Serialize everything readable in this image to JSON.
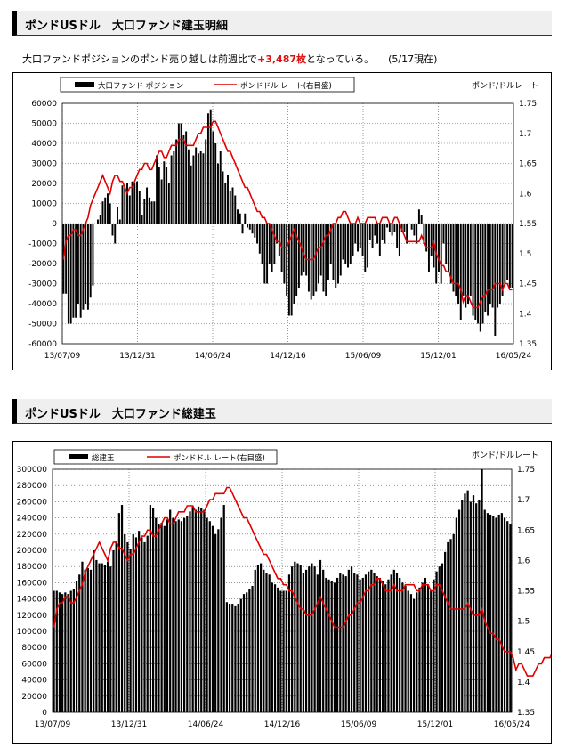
{
  "section1": {
    "title": "ポンドUSドル　大口ファンド建玉明細",
    "description": {
      "prefix": "大口ファンドポジションのポンド売り越しは前週比で",
      "highlight": "+3,487枚",
      "suffix": "となっている。",
      "date_note": "(5/17現在)"
    }
  },
  "section2": {
    "title": "ポンドUSドル　大口ファンド総建玉"
  },
  "colors": {
    "bar": "#000000",
    "line": "#e00000",
    "grid": "#555555"
  },
  "chart_data": [
    {
      "type": "bar",
      "y2_type": "line",
      "title": "",
      "legend": {
        "placement": "top-left",
        "bar_label": "大口ファンド ポジション",
        "line_label": "ポンドドル レート(右目盛)"
      },
      "y2label": "ポンド/ドルレート",
      "ylim": [
        -60000,
        60000
      ],
      "yticks": [
        -60000,
        -50000,
        -40000,
        -30000,
        -20000,
        -10000,
        0,
        10000,
        20000,
        30000,
        40000,
        50000,
        60000
      ],
      "y2lim": [
        1.35,
        1.75
      ],
      "y2ticks": [
        1.35,
        1.4,
        1.45,
        1.5,
        1.55,
        1.6,
        1.65,
        1.7,
        1.75
      ],
      "xticks": [
        "13/07/09",
        "13/12/31",
        "14/06/24",
        "14/12/16",
        "15/06/09",
        "15/12/01",
        "16/05/24"
      ],
      "grid": true,
      "series": [
        {
          "name": "大口ファンド ポジション",
          "type": "bar",
          "values": [
            -35000,
            -35000,
            -50000,
            -50000,
            -47000,
            -47000,
            -40000,
            -47000,
            -43000,
            -40000,
            -43000,
            -37000,
            -31000,
            0,
            2000,
            4000,
            11000,
            13000,
            15000,
            10000,
            -6000,
            -10000,
            8000,
            2000,
            19000,
            18000,
            20000,
            14000,
            21000,
            20000,
            21000,
            16000,
            4000,
            12000,
            18000,
            13000,
            11000,
            11000,
            34000,
            28000,
            22000,
            31000,
            28000,
            20000,
            34000,
            36000,
            42000,
            50000,
            50000,
            44000,
            46000,
            37000,
            29000,
            34000,
            38000,
            35000,
            36000,
            35000,
            42000,
            55000,
            57000,
            46000,
            40000,
            30000,
            36000,
            26000,
            20000,
            24000,
            16000,
            18000,
            14000,
            7000,
            5000,
            -5000,
            5000,
            -2000,
            -3000,
            -5000,
            -7000,
            -10000,
            -15000,
            -20000,
            -30000,
            -30000,
            -20000,
            -24000,
            -20000,
            -10000,
            -16000,
            -24000,
            -30000,
            -36000,
            -46000,
            -46000,
            -40000,
            -36000,
            -32000,
            -26000,
            -24000,
            -26000,
            -34000,
            -38000,
            -36000,
            -34000,
            -30000,
            -26000,
            -34000,
            -36000,
            -28000,
            -20000,
            -28000,
            -32000,
            -30000,
            -26000,
            -18000,
            -20000,
            -22000,
            -20000,
            -16000,
            -10000,
            -14000,
            -12000,
            -16000,
            -24000,
            -22000,
            -8000,
            -12000,
            -6000,
            -10000,
            -16000,
            -8000,
            -10000,
            -2000,
            -4000,
            -6000,
            -4000,
            -12000,
            -16000,
            -4000,
            -4000,
            -10000,
            0,
            -3000,
            -6000,
            -10000,
            7000,
            4000,
            -10000,
            -14000,
            -24000,
            -16000,
            -22000,
            -30000,
            -24000,
            -30000,
            -10000,
            -20000,
            -24000,
            -30000,
            -34000,
            -36000,
            -40000,
            -48000,
            -36000,
            -42000,
            -40000,
            -36000,
            -46000,
            -48000,
            -50000,
            -54000,
            -50000,
            -44000,
            -46000,
            -40000,
            -42000,
            -56000,
            -42000,
            -40000,
            -36000,
            -30000,
            -28000,
            -32000,
            -32000
          ]
        },
        {
          "name": "ポンドドル レート(右目盛)",
          "type": "line",
          "values": [
            1.49,
            1.52,
            1.53,
            1.53,
            1.54,
            1.54,
            1.53,
            1.53,
            1.54,
            1.55,
            1.56,
            1.58,
            1.59,
            1.6,
            1.61,
            1.62,
            1.63,
            1.62,
            1.61,
            1.6,
            1.62,
            1.63,
            1.63,
            1.62,
            1.62,
            1.61,
            1.6,
            1.61,
            1.61,
            1.62,
            1.63,
            1.64,
            1.64,
            1.65,
            1.65,
            1.64,
            1.64,
            1.65,
            1.66,
            1.67,
            1.67,
            1.66,
            1.66,
            1.67,
            1.68,
            1.68,
            1.68,
            1.69,
            1.69,
            1.69,
            1.68,
            1.68,
            1.68,
            1.68,
            1.69,
            1.7,
            1.7,
            1.71,
            1.71,
            1.71,
            1.71,
            1.72,
            1.72,
            1.71,
            1.7,
            1.69,
            1.68,
            1.67,
            1.67,
            1.66,
            1.65,
            1.64,
            1.63,
            1.62,
            1.61,
            1.61,
            1.6,
            1.59,
            1.58,
            1.57,
            1.57,
            1.56,
            1.56,
            1.55,
            1.55,
            1.54,
            1.53,
            1.52,
            1.52,
            1.51,
            1.51,
            1.51,
            1.52,
            1.53,
            1.54,
            1.53,
            1.52,
            1.51,
            1.5,
            1.49,
            1.49,
            1.49,
            1.49,
            1.5,
            1.51,
            1.51,
            1.52,
            1.53,
            1.53,
            1.54,
            1.55,
            1.55,
            1.56,
            1.56,
            1.57,
            1.57,
            1.56,
            1.55,
            1.55,
            1.55,
            1.56,
            1.55,
            1.55,
            1.55,
            1.56,
            1.56,
            1.56,
            1.56,
            1.55,
            1.55,
            1.56,
            1.56,
            1.56,
            1.55,
            1.55,
            1.56,
            1.56,
            1.55,
            1.54,
            1.53,
            1.52,
            1.52,
            1.52,
            1.52,
            1.52,
            1.52,
            1.53,
            1.52,
            1.51,
            1.51,
            1.51,
            1.52,
            1.5,
            1.49,
            1.48,
            1.48,
            1.47,
            1.47,
            1.46,
            1.45,
            1.45,
            1.45,
            1.44,
            1.42,
            1.43,
            1.43,
            1.42,
            1.41,
            1.41,
            1.41,
            1.42,
            1.43,
            1.43,
            1.44,
            1.44,
            1.44,
            1.45,
            1.45,
            1.45,
            1.44,
            1.45,
            1.45,
            1.44,
            1.44
          ]
        }
      ]
    },
    {
      "type": "bar",
      "y2_type": "line",
      "title": "",
      "legend": {
        "placement": "top-left",
        "bar_label": "総建玉",
        "line_label": "ポンドドル レート(右目盛)"
      },
      "y2label": "ポンド/ドルレート",
      "ylim": [
        0,
        300000
      ],
      "yticks": [
        0,
        20000,
        40000,
        60000,
        80000,
        100000,
        120000,
        140000,
        160000,
        180000,
        200000,
        220000,
        240000,
        260000,
        280000,
        300000
      ],
      "y2lim": [
        1.35,
        1.75
      ],
      "y2ticks": [
        1.35,
        1.4,
        1.45,
        1.5,
        1.55,
        1.6,
        1.65,
        1.7,
        1.75
      ],
      "xticks": [
        "13/07/09",
        "13/12/31",
        "14/06/24",
        "14/12/16",
        "15/06/09",
        "15/12/01",
        "16/05/24"
      ],
      "grid": true,
      "series": [
        {
          "name": "総建玉",
          "type": "bar",
          "values": [
            150000,
            150000,
            148000,
            146000,
            148000,
            146000,
            150000,
            152000,
            162000,
            170000,
            186000,
            176000,
            178000,
            176000,
            200000,
            188000,
            184000,
            184000,
            182000,
            186000,
            180000,
            200000,
            212000,
            246000,
            256000,
            220000,
            210000,
            202000,
            220000,
            216000,
            224000,
            216000,
            210000,
            218000,
            256000,
            252000,
            240000,
            232000,
            234000,
            230000,
            238000,
            250000,
            240000,
            236000,
            238000,
            236000,
            240000,
            242000,
            248000,
            254000,
            250000,
            254000,
            252000,
            250000,
            240000,
            236000,
            230000,
            220000,
            226000,
            240000,
            256000,
            136000,
            134000,
            134000,
            132000,
            134000,
            140000,
            146000,
            148000,
            152000,
            156000,
            176000,
            182000,
            184000,
            176000,
            172000,
            170000,
            160000,
            158000,
            154000,
            150000,
            150000,
            150000,
            170000,
            180000,
            186000,
            184000,
            182000,
            172000,
            176000,
            180000,
            184000,
            180000,
            170000,
            188000,
            176000,
            166000,
            164000,
            162000,
            160000,
            166000,
            172000,
            170000,
            168000,
            176000,
            180000,
            172000,
            170000,
            164000,
            166000,
            170000,
            174000,
            176000,
            172000,
            168000,
            166000,
            162000,
            158000,
            164000,
            170000,
            176000,
            172000,
            166000,
            160000,
            156000,
            150000,
            146000,
            140000,
            148000,
            154000,
            160000,
            166000,
            158000,
            150000,
            164000,
            174000,
            180000,
            184000,
            198000,
            210000,
            214000,
            220000,
            240000,
            250000,
            262000,
            270000,
            274000,
            260000,
            268000,
            258000,
            262000,
            300000,
            250000,
            246000,
            244000,
            242000,
            240000,
            244000,
            246000,
            240000,
            236000,
            232000
          ]
        },
        {
          "name": "ポンドドル レート(右目盛)",
          "type": "line",
          "values": [
            1.49,
            1.52,
            1.53,
            1.53,
            1.54,
            1.54,
            1.53,
            1.53,
            1.54,
            1.55,
            1.56,
            1.58,
            1.59,
            1.6,
            1.61,
            1.62,
            1.63,
            1.62,
            1.61,
            1.6,
            1.62,
            1.63,
            1.63,
            1.62,
            1.62,
            1.61,
            1.6,
            1.61,
            1.61,
            1.62,
            1.63,
            1.64,
            1.64,
            1.65,
            1.65,
            1.64,
            1.64,
            1.65,
            1.66,
            1.67,
            1.67,
            1.66,
            1.66,
            1.67,
            1.68,
            1.68,
            1.68,
            1.69,
            1.69,
            1.69,
            1.68,
            1.68,
            1.68,
            1.68,
            1.69,
            1.7,
            1.7,
            1.71,
            1.71,
            1.71,
            1.71,
            1.72,
            1.72,
            1.71,
            1.7,
            1.69,
            1.68,
            1.67,
            1.67,
            1.66,
            1.65,
            1.64,
            1.63,
            1.62,
            1.61,
            1.61,
            1.6,
            1.59,
            1.58,
            1.57,
            1.57,
            1.56,
            1.56,
            1.55,
            1.55,
            1.54,
            1.53,
            1.52,
            1.52,
            1.51,
            1.51,
            1.51,
            1.52,
            1.53,
            1.54,
            1.53,
            1.52,
            1.51,
            1.5,
            1.49,
            1.49,
            1.49,
            1.49,
            1.5,
            1.51,
            1.51,
            1.52,
            1.53,
            1.53,
            1.54,
            1.55,
            1.55,
            1.56,
            1.56,
            1.57,
            1.57,
            1.56,
            1.55,
            1.55,
            1.55,
            1.56,
            1.55,
            1.55,
            1.55,
            1.56,
            1.56,
            1.56,
            1.56,
            1.55,
            1.55,
            1.56,
            1.56,
            1.56,
            1.55,
            1.55,
            1.56,
            1.56,
            1.55,
            1.54,
            1.53,
            1.52,
            1.52,
            1.52,
            1.52,
            1.52,
            1.52,
            1.53,
            1.52,
            1.51,
            1.51,
            1.51,
            1.52,
            1.5,
            1.49,
            1.48,
            1.48,
            1.47,
            1.47,
            1.46,
            1.45,
            1.45,
            1.45,
            1.44,
            1.42,
            1.43,
            1.43,
            1.42,
            1.41,
            1.41,
            1.41,
            1.42,
            1.43,
            1.43,
            1.44,
            1.44,
            1.44,
            1.45,
            1.45,
            1.45,
            1.44,
            1.45,
            1.45,
            1.44,
            1.44
          ]
        }
      ]
    }
  ]
}
